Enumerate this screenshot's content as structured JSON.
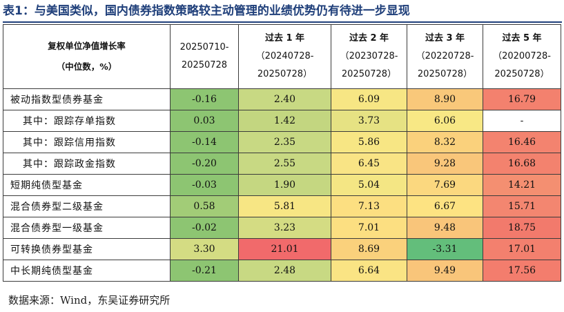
{
  "title": "表1：与美国类似，国内债券指数策略较主动管理的业绩优势仍有待进一步显现",
  "header": {
    "label_line1": "复权单位净值增长率",
    "label_line2": "（中位数，%）",
    "periods": [
      {
        "line1": "20250710-",
        "line2": "20250728",
        "line3": ""
      },
      {
        "line1": "过去 1 年",
        "line2": "（20240728-",
        "line3": "20250728）"
      },
      {
        "line1": "过去 2 年",
        "line2": "（20230728-",
        "line3": "20250728）"
      },
      {
        "line1": "过去 3 年",
        "line2": "（20220728-",
        "line3": "20250728）"
      },
      {
        "line1": "过去 5 年",
        "line2": "（20200728-",
        "line3": "20250728）"
      }
    ]
  },
  "rows": [
    {
      "label": "被动指数型债券基金",
      "sub": false,
      "values": [
        "-0.16",
        "2.40",
        "6.09",
        "8.90",
        "16.79"
      ],
      "colors": [
        "#8dc572",
        "#c8d983",
        "#f7e684",
        "#f9c87a",
        "#f3816e"
      ]
    },
    {
      "label": "其中：跟踪存单指数",
      "sub": true,
      "values": [
        "0.03",
        "1.42",
        "3.73",
        "6.06",
        "-"
      ],
      "colors": [
        "#8dc572",
        "#c3d680",
        "#e6e283",
        "#f8e885",
        "#ffffff"
      ]
    },
    {
      "label": "其中：跟踪信用指数",
      "sub": true,
      "values": [
        "-0.14",
        "2.35",
        "5.86",
        "8.32",
        "16.46"
      ],
      "colors": [
        "#8dc572",
        "#c8d983",
        "#f7e684",
        "#fad17c",
        "#f3836f"
      ]
    },
    {
      "label": "其中：跟踪政金指数",
      "sub": true,
      "values": [
        "-0.20",
        "2.55",
        "6.45",
        "9.28",
        "16.68"
      ],
      "colors": [
        "#8dc572",
        "#c8d983",
        "#f9e485",
        "#f9c67a",
        "#f3826e"
      ]
    },
    {
      "label": "短期纯债型基金",
      "sub": false,
      "values": [
        "-0.03",
        "1.90",
        "5.04",
        "7.69",
        "14.21"
      ],
      "colors": [
        "#8dc572",
        "#c5d781",
        "#f4e684",
        "#fbd87f",
        "#f48f71"
      ]
    },
    {
      "label": "混合债券型二级基金",
      "sub": false,
      "values": [
        "0.58",
        "5.81",
        "7.13",
        "6.67",
        "15.71"
      ],
      "colors": [
        "#a2cc77",
        "#f7e684",
        "#fcdf81",
        "#fde382",
        "#f38670"
      ]
    },
    {
      "label": "混合债券型一级基金",
      "sub": false,
      "values": [
        "-0.02",
        "3.23",
        "7.01",
        "9.48",
        "18.75"
      ],
      "colors": [
        "#8dc572",
        "#d4dc83",
        "#fcdf81",
        "#f9c57a",
        "#f27a6c"
      ]
    },
    {
      "label": "可转换债券型基金",
      "sub": false,
      "values": [
        "3.30",
        "21.01",
        "8.69",
        "-3.31",
        "17.01"
      ],
      "colors": [
        "#d4dc83",
        "#f16a6b",
        "#fad17c",
        "#63be7b",
        "#f3806e"
      ]
    },
    {
      "label": "中长期纯债型基金",
      "sub": false,
      "values": [
        "-0.21",
        "2.48",
        "6.64",
        "9.49",
        "17.56"
      ],
      "colors": [
        "#8dc572",
        "#c8d983",
        "#fae484",
        "#f9c57a",
        "#f37d6d"
      ]
    }
  ],
  "source": "数据来源：Wind，东吴证券研究所"
}
